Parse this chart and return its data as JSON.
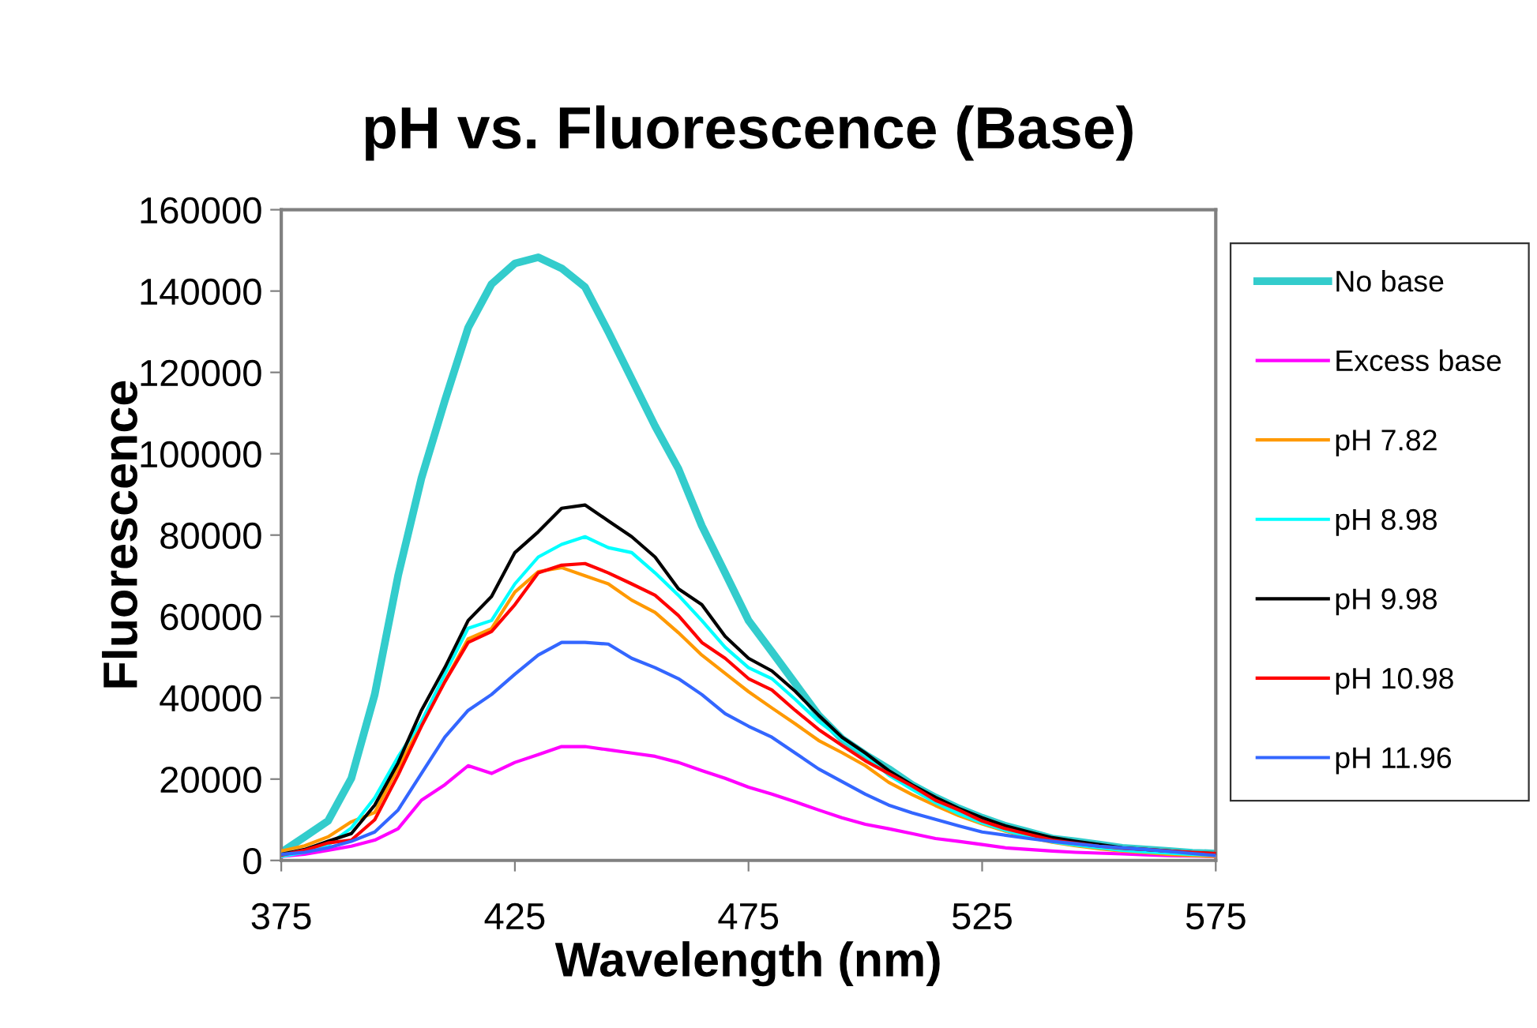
{
  "chart_data": {
    "type": "line",
    "title": "pH vs. Fluorescence (Base)",
    "xlabel": "Wavelength (nm)",
    "ylabel": "Fluorescence",
    "x": [
      375,
      380,
      385,
      390,
      395,
      400,
      405,
      410,
      415,
      420,
      425,
      430,
      435,
      440,
      445,
      450,
      455,
      460,
      465,
      470,
      475,
      480,
      485,
      490,
      495,
      500,
      505,
      510,
      515,
      520,
      525,
      530,
      535,
      540,
      545,
      550,
      555,
      560,
      565,
      570,
      575
    ],
    "series": [
      {
        "name": "No base",
        "color": "#33cccc",
        "values": [
          2000,
          5800,
          9700,
          20200,
          40800,
          70000,
          94000,
          113000,
          131000,
          141700,
          146800,
          148300,
          145600,
          141000,
          130000,
          118400,
          106800,
          96300,
          82300,
          70700,
          59000,
          51300,
          43500,
          35700,
          29900,
          26000,
          22500,
          18600,
          15500,
          12800,
          10500,
          8500,
          7000,
          5400,
          4700,
          3900,
          3100,
          2700,
          2300,
          1900,
          1700
        ]
      },
      {
        "name": "Excess base",
        "color": "#ff00ff",
        "values": [
          1000,
          1500,
          2500,
          3500,
          5000,
          7800,
          14800,
          18600,
          23300,
          21400,
          24100,
          26000,
          28000,
          28000,
          27200,
          26400,
          25600,
          24100,
          22100,
          20200,
          18000,
          16300,
          14400,
          12400,
          10500,
          8900,
          7800,
          6600,
          5400,
          4700,
          3900,
          3100,
          2700,
          2300,
          2000,
          1800,
          1600,
          1400,
          1200,
          1100,
          1000
        ]
      },
      {
        "name": "pH 7.82",
        "color": "#ff9900",
        "values": [
          2300,
          3600,
          5800,
          9500,
          11800,
          22800,
          33500,
          44000,
          54500,
          57000,
          66000,
          71000,
          72000,
          70000,
          68000,
          64000,
          61000,
          56000,
          50500,
          46000,
          41500,
          37500,
          33600,
          29500,
          26500,
          23300,
          19200,
          16200,
          13500,
          11000,
          9000,
          7200,
          5700,
          4500,
          3600,
          2900,
          2300,
          1900,
          1500,
          1200,
          1000
        ]
      },
      {
        "name": "pH 8.98",
        "color": "#00ffff",
        "values": [
          1000,
          2000,
          3800,
          8000,
          15400,
          25500,
          34200,
          45800,
          57100,
          59000,
          68000,
          74600,
          77700,
          79600,
          76900,
          75700,
          70700,
          65200,
          59000,
          52400,
          47400,
          44700,
          39600,
          34200,
          29900,
          26000,
          21000,
          17500,
          14200,
          11500,
          9200,
          7400,
          5900,
          4600,
          3800,
          3100,
          2500,
          2100,
          1800,
          1500,
          1300
        ]
      },
      {
        "name": "pH 9.98",
        "color": "#000000",
        "values": [
          1500,
          2700,
          4700,
          6600,
          13600,
          24000,
          36900,
          47400,
          59000,
          64900,
          75700,
          80800,
          86600,
          87400,
          83500,
          79600,
          74600,
          66800,
          62900,
          55100,
          49700,
          46600,
          41600,
          35700,
          30300,
          26400,
          22100,
          18600,
          15500,
          12800,
          10500,
          8500,
          7000,
          5600,
          4700,
          3900,
          3100,
          2700,
          2300,
          1900,
          1700
        ]
      },
      {
        "name": "pH 10.98",
        "color": "#ff0000",
        "values": [
          1300,
          2500,
          4300,
          5000,
          10000,
          21000,
          33000,
          43900,
          53600,
          56300,
          62900,
          70700,
          72600,
          73000,
          70700,
          68000,
          65200,
          60200,
          53600,
          49700,
          44700,
          41900,
          36900,
          32200,
          28300,
          24500,
          21400,
          18300,
          14800,
          12400,
          9700,
          7800,
          6400,
          5000,
          4200,
          3500,
          3000,
          2700,
          2300,
          2000,
          1700
        ]
      },
      {
        "name": "pH 11.96",
        "color": "#3366ff",
        "values": [
          1500,
          2000,
          3100,
          4700,
          7000,
          12400,
          21400,
          30300,
          36900,
          40800,
          45800,
          50500,
          53600,
          53600,
          53200,
          49700,
          47400,
          44700,
          40800,
          36100,
          33000,
          30300,
          26400,
          22500,
          19400,
          16300,
          13600,
          11700,
          10100,
          8500,
          7000,
          6200,
          5400,
          4700,
          4100,
          3500,
          3100,
          2700,
          2200,
          1700,
          1200
        ]
      }
    ],
    "xlim": [
      375,
      575
    ],
    "xticks": [
      375,
      425,
      475,
      525,
      575
    ],
    "ylim": [
      0,
      160000
    ],
    "yticks": [
      0,
      20000,
      40000,
      60000,
      80000,
      100000,
      120000,
      140000,
      160000
    ],
    "grid": false,
    "legend": "right",
    "marker": "none",
    "line_style": "solid"
  }
}
